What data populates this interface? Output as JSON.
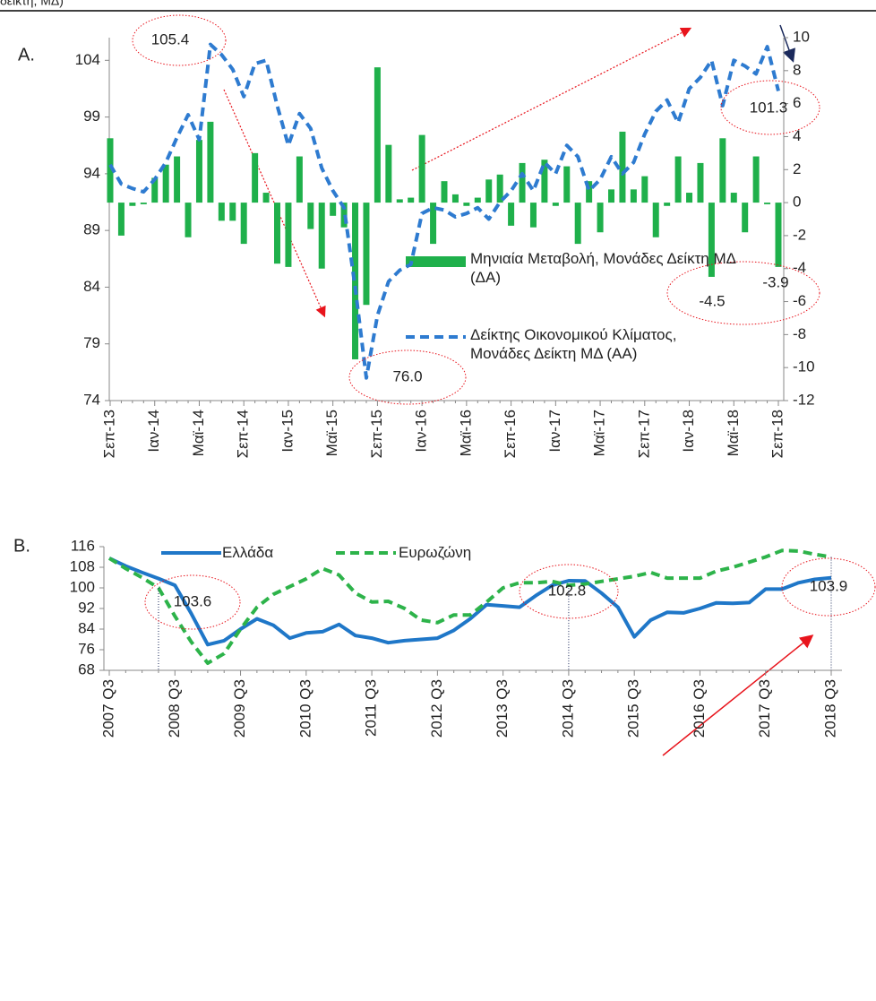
{
  "header_fragment": "δείκτη, ΜΔ)",
  "chart_data": [
    {
      "type": "combo",
      "label": "A.",
      "categories": [
        "Σεπ-13",
        null,
        null,
        null,
        "Ιαν-14",
        null,
        null,
        null,
        "Μαϊ-14",
        null,
        null,
        null,
        "Σεπ-14",
        null,
        null,
        null,
        "Ιαν-15",
        null,
        null,
        null,
        "Μαϊ-15",
        null,
        null,
        null,
        "Σεπ-15",
        null,
        null,
        null,
        "Ιαν-16",
        null,
        null,
        null,
        "Μαϊ-16",
        null,
        null,
        null,
        "Σεπ-16",
        null,
        null,
        null,
        "Ιαν-17",
        null,
        null,
        null,
        "Μαϊ-17",
        null,
        null,
        null,
        "Σεπ-17",
        null,
        null,
        null,
        "Ιαν-18",
        null,
        null,
        null,
        "Μαϊ-18",
        null,
        null,
        null,
        "Σεπ-18"
      ],
      "ylim": [
        74,
        106
      ],
      "yticks": [
        74,
        79,
        84,
        89,
        94,
        99,
        104
      ],
      "y2lim": [
        -12,
        10
      ],
      "y2ticks": [
        -12,
        -10,
        -8,
        -6,
        -4,
        -2,
        0,
        2,
        4,
        6,
        8,
        10
      ],
      "series": [
        {
          "name": "Μηνιαία Μεταβολή, Μονάδες Δείκτη ΜΔ (ΔΑ)",
          "type": "bar",
          "axis": "y2",
          "color": "#1fb04b",
          "values": [
            3.9,
            -2.0,
            -0.2,
            -0.1,
            1.5,
            2.3,
            2.8,
            -2.1,
            3.8,
            4.9,
            -1.1,
            -1.1,
            -2.5,
            3.0,
            0.6,
            -3.7,
            -3.9,
            2.8,
            -1.6,
            -4.0,
            -0.8,
            -1.5,
            -9.5,
            -6.2,
            8.2,
            3.5,
            0.2,
            0.3,
            4.1,
            -2.5,
            1.3,
            0.5,
            -0.2,
            0.3,
            1.4,
            1.7,
            -1.4,
            2.4,
            -1.5,
            2.6,
            -0.2,
            2.2,
            -2.5,
            1.3,
            -1.8,
            0.8,
            4.3,
            0.8,
            1.6,
            -2.1,
            -0.2,
            2.8,
            0.6,
            2.4,
            -4.5,
            3.9,
            0.6,
            -1.8,
            2.8,
            -0.1,
            -3.9
          ]
        },
        {
          "name": "Δείκτης Οικονομικού Κλίματος, Μονάδες Δείκτη ΜΔ (ΑΑ)",
          "type": "line",
          "dash": true,
          "color": "#2e7bd0",
          "values": [
            94.8,
            93.1,
            92.7,
            92.4,
            93.5,
            95.0,
            97.2,
            99.2,
            97.0,
            105.4,
            104.5,
            103.2,
            100.8,
            103.7,
            104.0,
            100.0,
            96.5,
            99.3,
            98.0,
            94.5,
            92.5,
            91.0,
            84.0,
            76.0,
            81.5,
            84.5,
            85.5,
            86.0,
            90.5,
            91.0,
            90.8,
            90.2,
            90.5,
            91.0,
            90.0,
            91.5,
            92.5,
            94.0,
            92.5,
            95.0,
            94.0,
            96.5,
            95.5,
            92.5,
            93.5,
            95.5,
            94.0,
            95.0,
            97.5,
            99.5,
            100.5,
            98.5,
            101.5,
            102.5,
            104.0,
            100.0,
            104.0,
            103.5,
            102.8,
            105.2,
            101.3
          ]
        }
      ],
      "annotations": [
        "105.4",
        "101.3",
        "76.0",
        "-4.5",
        "-3.9"
      ]
    },
    {
      "type": "line",
      "label": "B.",
      "categories": [
        "2007 Q3",
        null,
        null,
        null,
        "2008 Q3",
        null,
        null,
        null,
        "2009 Q3",
        null,
        null,
        null,
        "2010 Q3",
        null,
        null,
        null,
        "2011 Q3",
        null,
        null,
        null,
        "2012 Q3",
        null,
        null,
        null,
        "2013 Q3",
        null,
        null,
        null,
        "2014 Q3",
        null,
        null,
        null,
        "2015 Q3",
        null,
        null,
        null,
        "2016 Q3",
        null,
        null,
        null,
        "2017 Q3",
        null,
        null,
        null,
        "2018 Q3"
      ],
      "ylim": [
        68,
        116
      ],
      "yticks": [
        68,
        76,
        84,
        92,
        100,
        108,
        116
      ],
      "series": [
        {
          "name": "Ελλάδα",
          "color": "#1f77c8",
          "dash": false,
          "values": [
            111.5,
            108.5,
            106.0,
            103.6,
            101.0,
            90.0,
            78.0,
            79.5,
            84.0,
            88.0,
            85.5,
            80.5,
            82.5,
            83.0,
            85.8,
            81.5,
            80.5,
            78.7,
            79.5,
            80.0,
            80.5,
            83.5,
            88.0,
            93.5,
            93.0,
            92.5,
            97.0,
            101.0,
            102.8,
            102.7,
            98.0,
            92.5,
            81.0,
            87.5,
            90.5,
            90.3,
            92.0,
            94.2,
            94.0,
            94.3,
            99.5,
            99.5,
            102.0,
            103.3,
            103.9
          ]
        },
        {
          "name": "Ευρωζώνη",
          "color": "#2db34a",
          "dash": true,
          "values": [
            111.5,
            107.5,
            104.0,
            100.0,
            89.0,
            79.0,
            70.8,
            74.5,
            84.0,
            92.5,
            97.5,
            100.5,
            103.5,
            107.5,
            105.0,
            98.0,
            94.5,
            94.8,
            92.0,
            87.5,
            86.5,
            89.5,
            89.5,
            94.5,
            100.0,
            102.0,
            102.0,
            102.5,
            101.0,
            101.5,
            102.5,
            103.5,
            104.5,
            106.0,
            103.8,
            103.8,
            103.8,
            106.5,
            108.0,
            110.0,
            112.0,
            114.5,
            114.3,
            113.0,
            112.0
          ]
        }
      ],
      "annotations": [
        "103.6",
        "102.8",
        "103.9"
      ]
    }
  ]
}
